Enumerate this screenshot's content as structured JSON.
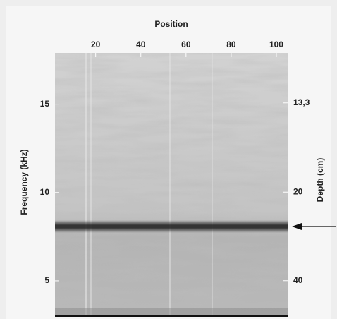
{
  "chart_data": {
    "type": "image-plot",
    "x_label": "Position",
    "y_label": "Frequency (kHz)",
    "y2_label": "Depth (cm)",
    "xlim": [
      2,
      105
    ],
    "xticks": [
      20,
      40,
      60,
      80,
      100
    ],
    "ylim": [
      3,
      17.9
    ],
    "yticks": [
      5,
      10,
      15
    ],
    "y2lim": [
      66.7,
      11.2
    ],
    "y2_scale": "reciprocal",
    "y2ticks": [
      {
        "value": 13.3,
        "label": "13,3"
      },
      20,
      40
    ]
  }
}
